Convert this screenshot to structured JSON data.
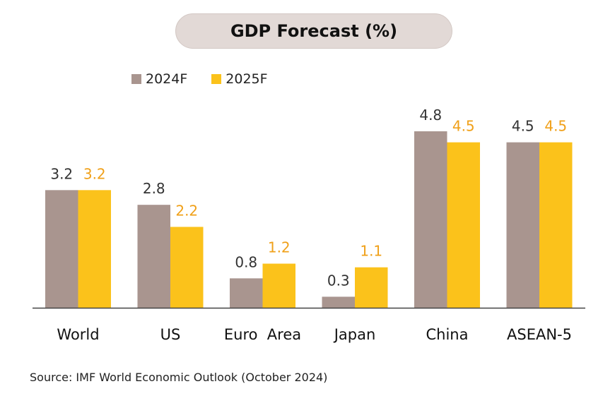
{
  "header": {
    "title": "GDP Forecast (%)"
  },
  "legend": {
    "items": [
      {
        "label": "2024F",
        "color": "#a9958f"
      },
      {
        "label": "2025F",
        "color": "#fbc21b"
      }
    ]
  },
  "chart_data": {
    "type": "bar",
    "title": "GDP Forecast (%)",
    "categories": [
      "World",
      "US",
      "Euro  Area",
      "Japan",
      "China",
      "ASEAN-5"
    ],
    "series": [
      {
        "name": "2024F",
        "values": [
          3.2,
          2.8,
          0.8,
          0.3,
          4.8,
          4.5
        ],
        "color": "#a9958f",
        "label_color": "#333333"
      },
      {
        "name": "2025F",
        "values": [
          3.2,
          2.2,
          1.2,
          1.1,
          4.5,
          4.5
        ],
        "color": "#fbc21b",
        "label_color": "#f0a019"
      }
    ],
    "ylim": [
      0,
      4.8
    ],
    "grid": false,
    "legend_position": "top-left"
  },
  "footer": {
    "source": "Source: IMF World Economic Outlook (October 2024)"
  }
}
